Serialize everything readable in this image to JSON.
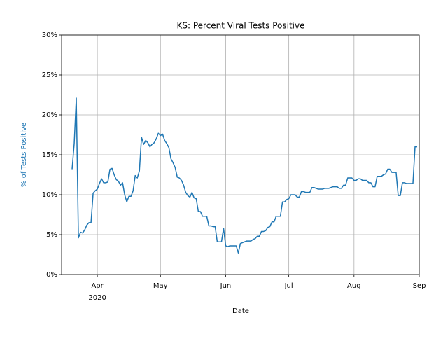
{
  "chart_data": {
    "type": "line",
    "title": "KS: Percent Viral Tests Positive",
    "xlabel": "Date",
    "ylabel": "% of Tests Positive",
    "color": "#1f77b4",
    "grid": true,
    "xlim": [
      "2020-03-15",
      "2020-09-01"
    ],
    "xticks": [
      {
        "value": "2020-04-01",
        "label": "Apr"
      },
      {
        "value": "2020-05-01",
        "label": "May"
      },
      {
        "value": "2020-06-01",
        "label": "Jun"
      },
      {
        "value": "2020-07-01",
        "label": "Jul"
      },
      {
        "value": "2020-08-01",
        "label": "Aug"
      },
      {
        "value": "2020-09-01",
        "label": "Sep"
      }
    ],
    "xtick_year": {
      "value": "2020-04-01",
      "label": "2020"
    },
    "ylim": [
      0,
      30
    ],
    "yticks": [
      {
        "value": 0,
        "label": "0%"
      },
      {
        "value": 5,
        "label": "5%"
      },
      {
        "value": 10,
        "label": "10%"
      },
      {
        "value": 15,
        "label": "15%"
      },
      {
        "value": 20,
        "label": "20%"
      },
      {
        "value": 25,
        "label": "25%"
      },
      {
        "value": 30,
        "label": "30%"
      }
    ],
    "x": [
      "2020-03-20",
      "2020-03-21",
      "2020-03-22",
      "2020-03-23",
      "2020-03-24",
      "2020-03-25",
      "2020-03-26",
      "2020-03-27",
      "2020-03-28",
      "2020-03-29",
      "2020-03-30",
      "2020-03-31",
      "2020-04-01",
      "2020-04-02",
      "2020-04-03",
      "2020-04-04",
      "2020-04-05",
      "2020-04-06",
      "2020-04-07",
      "2020-04-08",
      "2020-04-09",
      "2020-04-10",
      "2020-04-11",
      "2020-04-12",
      "2020-04-13",
      "2020-04-14",
      "2020-04-15",
      "2020-04-16",
      "2020-04-17",
      "2020-04-18",
      "2020-04-19",
      "2020-04-20",
      "2020-04-21",
      "2020-04-22",
      "2020-04-23",
      "2020-04-24",
      "2020-04-25",
      "2020-04-26",
      "2020-04-27",
      "2020-04-28",
      "2020-04-29",
      "2020-04-30",
      "2020-05-01",
      "2020-05-02",
      "2020-05-03",
      "2020-05-04",
      "2020-05-05",
      "2020-05-06",
      "2020-05-07",
      "2020-05-08",
      "2020-05-09",
      "2020-05-10",
      "2020-05-11",
      "2020-05-12",
      "2020-05-13",
      "2020-05-14",
      "2020-05-15",
      "2020-05-16",
      "2020-05-17",
      "2020-05-18",
      "2020-05-19",
      "2020-05-20",
      "2020-05-21",
      "2020-05-22",
      "2020-05-23",
      "2020-05-24",
      "2020-05-25",
      "2020-05-26",
      "2020-05-27",
      "2020-05-28",
      "2020-05-29",
      "2020-05-30",
      "2020-05-31",
      "2020-06-01",
      "2020-06-02",
      "2020-06-03",
      "2020-06-04",
      "2020-06-05",
      "2020-06-06",
      "2020-06-07",
      "2020-06-08",
      "2020-06-09",
      "2020-06-10",
      "2020-06-11",
      "2020-06-12",
      "2020-06-13",
      "2020-06-14",
      "2020-06-15",
      "2020-06-16",
      "2020-06-17",
      "2020-06-18",
      "2020-06-19",
      "2020-06-20",
      "2020-06-21",
      "2020-06-22",
      "2020-06-23",
      "2020-06-24",
      "2020-06-25",
      "2020-06-26",
      "2020-06-27",
      "2020-06-28",
      "2020-06-29",
      "2020-06-30",
      "2020-07-01",
      "2020-07-02",
      "2020-07-03",
      "2020-07-04",
      "2020-07-05",
      "2020-07-06",
      "2020-07-07",
      "2020-07-08",
      "2020-07-09",
      "2020-07-10",
      "2020-07-11",
      "2020-07-12",
      "2020-07-13",
      "2020-07-14",
      "2020-07-15",
      "2020-07-16",
      "2020-07-17",
      "2020-07-18",
      "2020-07-19",
      "2020-07-20",
      "2020-07-21",
      "2020-07-22",
      "2020-07-23",
      "2020-07-24",
      "2020-07-25",
      "2020-07-26",
      "2020-07-27",
      "2020-07-28",
      "2020-07-29",
      "2020-07-30",
      "2020-07-31",
      "2020-08-01",
      "2020-08-02",
      "2020-08-03",
      "2020-08-04",
      "2020-08-05",
      "2020-08-06",
      "2020-08-07",
      "2020-08-08",
      "2020-08-09",
      "2020-08-10",
      "2020-08-11",
      "2020-08-12",
      "2020-08-13",
      "2020-08-14",
      "2020-08-15",
      "2020-08-16",
      "2020-08-17",
      "2020-08-18",
      "2020-08-19",
      "2020-08-20",
      "2020-08-21",
      "2020-08-22",
      "2020-08-23",
      "2020-08-24",
      "2020-08-25",
      "2020-08-26",
      "2020-08-27",
      "2020-08-28",
      "2020-08-29",
      "2020-08-30",
      "2020-08-31"
    ],
    "values": [
      13.2,
      16.4,
      22.1,
      4.6,
      5.3,
      5.2,
      5.6,
      6.2,
      6.5,
      6.5,
      10.2,
      10.5,
      10.7,
      11.4,
      12.0,
      11.5,
      11.5,
      11.6,
      13.2,
      13.3,
      12.5,
      11.9,
      11.7,
      11.2,
      11.5,
      10.0,
      9.1,
      9.8,
      9.8,
      10.5,
      12.4,
      12.1,
      13.0,
      17.2,
      16.3,
      16.8,
      16.5,
      16.0,
      16.3,
      16.5,
      17.0,
      17.7,
      17.4,
      17.6,
      16.8,
      16.4,
      15.9,
      14.5,
      14.0,
      13.4,
      12.2,
      12.1,
      11.8,
      11.2,
      10.3,
      9.9,
      9.7,
      10.3,
      9.6,
      9.5,
      7.9,
      7.9,
      7.3,
      7.3,
      7.3,
      6.1,
      6.1,
      6.0,
      6.0,
      4.1,
      4.1,
      4.1,
      5.8,
      3.6,
      3.5,
      3.6,
      3.6,
      3.6,
      3.6,
      2.7,
      3.9,
      4.0,
      4.1,
      4.2,
      4.2,
      4.2,
      4.4,
      4.5,
      4.8,
      4.8,
      5.4,
      5.4,
      5.5,
      5.9,
      6.0,
      6.6,
      6.6,
      7.3,
      7.3,
      7.3,
      9.1,
      9.1,
      9.4,
      9.5,
      10.0,
      10.0,
      10.0,
      9.7,
      9.7,
      10.4,
      10.4,
      10.3,
      10.3,
      10.3,
      10.9,
      10.9,
      10.8,
      10.7,
      10.7,
      10.7,
      10.8,
      10.8,
      10.8,
      10.9,
      11.0,
      11.0,
      11.0,
      10.8,
      10.8,
      11.2,
      11.2,
      12.1,
      12.1,
      12.1,
      11.8,
      11.8,
      12.0,
      12.0,
      11.8,
      11.8,
      11.8,
      11.5,
      11.5,
      11.0,
      11.0,
      12.3,
      12.3,
      12.3,
      12.5,
      12.6,
      13.2,
      13.2,
      12.8,
      12.8,
      12.8,
      9.9,
      9.9,
      11.5,
      11.5,
      11.4,
      11.4,
      11.4,
      11.4,
      16.0,
      16.0
    ]
  }
}
